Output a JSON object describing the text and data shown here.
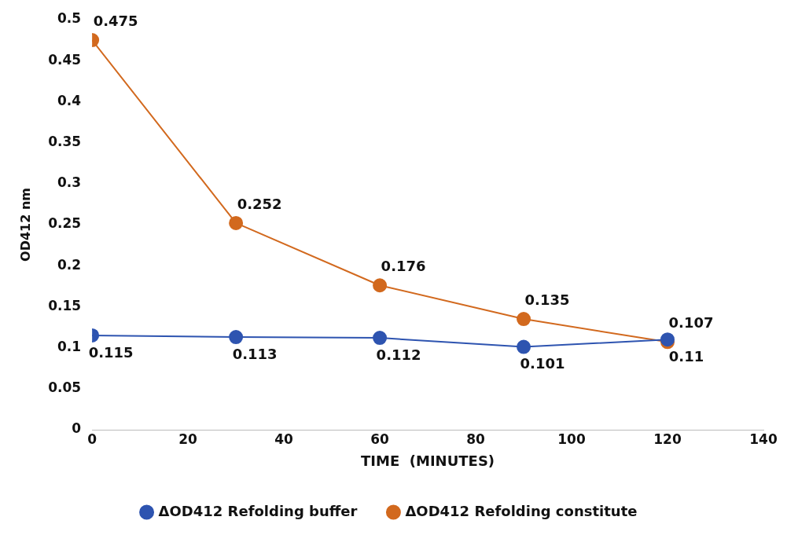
{
  "chart_data": {
    "type": "line",
    "xlabel": "TIME  (MINUTES)",
    "ylabel": "OD412 nm",
    "x": [
      0,
      30,
      60,
      90,
      120
    ],
    "series": [
      {
        "name": "ΔOD412 Refolding buffer",
        "color": "#2e54b0",
        "values": [
          0.115,
          0.113,
          0.112,
          0.101,
          0.11
        ]
      },
      {
        "name": "ΔOD412 Refolding constitute",
        "color": "#d2691e",
        "values": [
          0.475,
          0.252,
          0.176,
          0.135,
          0.107
        ]
      }
    ],
    "xlim": [
      0,
      140
    ],
    "xticks": [
      0,
      20,
      40,
      60,
      80,
      100,
      120,
      140
    ],
    "ylim": [
      0,
      0.5
    ],
    "yticks": [
      0,
      0.05,
      0.1,
      0.15,
      0.2,
      0.25,
      0.3,
      0.35,
      0.4,
      0.45,
      0.5
    ],
    "grid": false,
    "legend": "bottom",
    "marker": "circle",
    "line_style": "solid",
    "data_labels": true
  }
}
